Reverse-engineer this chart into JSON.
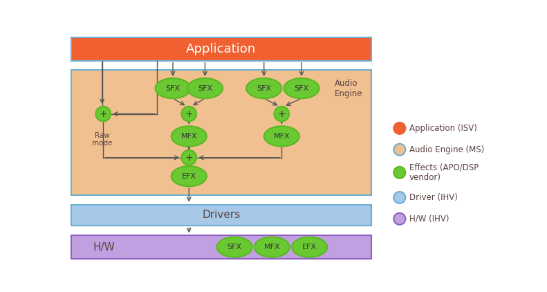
{
  "bg_color": "#ffffff",
  "app_color": "#f06030",
  "app_border": "#6ab0d0",
  "audio_engine_color": "#f0c090",
  "audio_engine_border": "#6ab0d0",
  "driver_color": "#a8c8e8",
  "driver_border": "#6ab0d0",
  "hw_color": "#c0a0e0",
  "hw_border": "#9060c0",
  "green_fill": "#6ac832",
  "green_border": "#5ab820",
  "text_color": "#5a4040",
  "arrow_color": "#555555",
  "legend_text_color": "#5a4040",
  "fig_width": 7.91,
  "fig_height": 4.22,
  "legend_items": [
    {
      "label": "Application (ISV)",
      "color": "#f06030",
      "border": "#f06030"
    },
    {
      "label": "Audio Engine (MS)",
      "color": "#f0c090",
      "border": "#6ab0d0"
    },
    {
      "label": "Effects (APO/DSP\nvendor)",
      "color": "#6ac832",
      "border": "#5ab820"
    },
    {
      "label": "Driver (IHV)",
      "color": "#a8c8e8",
      "border": "#6ab0d0"
    },
    {
      "label": "H/W (IHV)",
      "color": "#c0a0e0",
      "border": "#9060c0"
    }
  ]
}
